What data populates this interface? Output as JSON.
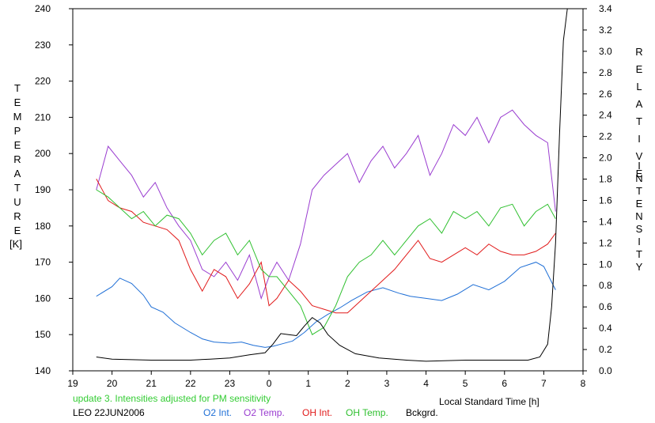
{
  "chart_data": {
    "type": "line",
    "title": "",
    "xlabel": "Local Standard Time [h]",
    "ylabel_left": "TEMPERATURE [K]",
    "ylabel_right": "RELATIVE INTENSITY",
    "left_label_letters": [
      "T",
      "E",
      "M",
      "P",
      "E",
      "R",
      "A",
      "T",
      "U",
      "R",
      "E"
    ],
    "left_label_unit": "[K]",
    "right_label_word1": [
      "R",
      "E",
      "L",
      "A",
      "T",
      "I",
      "V",
      "E"
    ],
    "right_label_word2": [
      "I",
      "N",
      "T",
      "E",
      "N",
      "S",
      "I",
      "T",
      "Y"
    ],
    "xlim": [
      19,
      32
    ],
    "ylim_left": [
      140,
      240
    ],
    "ylim_right": [
      0.0,
      3.4
    ],
    "x_tick_labels": [
      "19",
      "20",
      "21",
      "22",
      "23",
      "0",
      "1",
      "2",
      "3",
      "4",
      "5",
      "6",
      "7",
      "8"
    ],
    "y_left_tick_labels": [
      "140",
      "150",
      "160",
      "170",
      "180",
      "190",
      "200",
      "210",
      "220",
      "230",
      "240"
    ],
    "y_right_tick_labels": [
      "0.0",
      "0.2",
      "0.4",
      "0.6",
      "0.8",
      "1.0",
      "1.2",
      "1.4",
      "1.6",
      "1.8",
      "2.0",
      "2.2",
      "2.4",
      "2.6",
      "2.8",
      "3.0",
      "3.2",
      "3.4"
    ],
    "annotation": "update 3. Intensities adjusted for PM sensitivity",
    "station_date": "LEO 22JUN2006",
    "series": [
      {
        "name": "O2 Int.",
        "color": "#1f6fd6",
        "axis": "right",
        "x": [
          19.6,
          20.0,
          20.2,
          20.5,
          20.8,
          21.0,
          21.3,
          21.6,
          22.0,
          22.3,
          22.6,
          23.0,
          23.3,
          23.6,
          23.9,
          24.1,
          24.3,
          24.6,
          24.9,
          25.2,
          25.5,
          25.8,
          26.1,
          26.5,
          26.9,
          27.3,
          27.6,
          28.0,
          28.4,
          28.8,
          29.2,
          29.6,
          30.0,
          30.4,
          30.8,
          31.0,
          31.3
        ],
        "y": [
          0.7,
          0.79,
          0.87,
          0.82,
          0.71,
          0.6,
          0.55,
          0.45,
          0.36,
          0.3,
          0.27,
          0.26,
          0.27,
          0.24,
          0.22,
          0.23,
          0.25,
          0.28,
          0.36,
          0.46,
          0.53,
          0.59,
          0.66,
          0.74,
          0.78,
          0.73,
          0.7,
          0.68,
          0.66,
          0.72,
          0.81,
          0.76,
          0.84,
          0.97,
          1.02,
          0.98,
          0.76
        ]
      },
      {
        "name": "O2 Temp.",
        "color": "#9a3dd0",
        "axis": "left",
        "x": [
          19.6,
          19.9,
          20.2,
          20.5,
          20.8,
          21.1,
          21.4,
          21.7,
          22.0,
          22.3,
          22.6,
          22.9,
          23.2,
          23.5,
          23.8,
          24.0,
          24.2,
          24.5,
          24.8,
          25.1,
          25.4,
          25.7,
          26.0,
          26.3,
          26.6,
          26.9,
          27.2,
          27.5,
          27.8,
          28.1,
          28.4,
          28.7,
          29.0,
          29.3,
          29.6,
          29.9,
          30.2,
          30.5,
          30.8,
          31.1,
          31.3
        ],
        "y": [
          190,
          202,
          198,
          194,
          188,
          192,
          185,
          180,
          176,
          168,
          166,
          170,
          165,
          172,
          160,
          166,
          170,
          165,
          175,
          190,
          194,
          197,
          200,
          192,
          198,
          202,
          196,
          200,
          205,
          194,
          200,
          208,
          205,
          210,
          203,
          210,
          212,
          208,
          205,
          203,
          184
        ]
      },
      {
        "name": "OH Int.",
        "color": "#e11a1a",
        "axis": "left",
        "x": [
          19.6,
          19.9,
          20.2,
          20.5,
          20.8,
          21.1,
          21.4,
          21.7,
          22.0,
          22.3,
          22.6,
          22.9,
          23.2,
          23.5,
          23.8,
          24.0,
          24.2,
          24.5,
          24.8,
          25.1,
          25.4,
          25.7,
          26.0,
          26.3,
          26.6,
          26.9,
          27.2,
          27.5,
          27.8,
          28.1,
          28.4,
          28.7,
          29.0,
          29.3,
          29.6,
          29.9,
          30.2,
          30.5,
          30.8,
          31.1,
          31.3
        ],
        "y": [
          193,
          187,
          185,
          184,
          181,
          180,
          179,
          176,
          168,
          162,
          168,
          166,
          160,
          164,
          170,
          158,
          160,
          165,
          162,
          158,
          157,
          156,
          156,
          159,
          162,
          165,
          168,
          172,
          176,
          171,
          170,
          172,
          174,
          172,
          175,
          173,
          172,
          172,
          173,
          175,
          178
        ]
      },
      {
        "name": "OH Temp.",
        "color": "#30c030",
        "axis": "left",
        "x": [
          19.6,
          19.9,
          20.2,
          20.5,
          20.8,
          21.1,
          21.4,
          21.7,
          22.0,
          22.3,
          22.6,
          22.9,
          23.2,
          23.5,
          23.8,
          24.0,
          24.2,
          24.5,
          24.8,
          25.1,
          25.4,
          25.7,
          26.0,
          26.3,
          26.6,
          26.9,
          27.2,
          27.5,
          27.8,
          28.1,
          28.4,
          28.7,
          29.0,
          29.3,
          29.6,
          29.9,
          30.2,
          30.5,
          30.8,
          31.1,
          31.3
        ],
        "y": [
          190,
          188,
          185,
          182,
          184,
          180,
          183,
          182,
          178,
          172,
          176,
          178,
          172,
          176,
          168,
          166,
          166,
          162,
          158,
          150,
          152,
          158,
          166,
          170,
          172,
          176,
          172,
          176,
          180,
          182,
          178,
          184,
          182,
          184,
          180,
          185,
          186,
          180,
          184,
          186,
          182
        ]
      },
      {
        "name": "Bckgrd.",
        "color": "#000000",
        "axis": "right",
        "x": [
          19.6,
          20.0,
          21.0,
          22.0,
          22.5,
          23.0,
          23.5,
          23.9,
          24.1,
          24.3,
          24.5,
          24.7,
          24.9,
          25.1,
          25.3,
          25.5,
          25.8,
          26.2,
          26.8,
          27.5,
          28.0,
          29.0,
          30.0,
          30.6,
          30.9,
          31.1,
          31.2,
          31.3,
          31.4,
          31.5,
          31.6
        ],
        "y": [
          0.13,
          0.11,
          0.1,
          0.1,
          0.11,
          0.12,
          0.15,
          0.17,
          0.25,
          0.35,
          0.34,
          0.33,
          0.42,
          0.5,
          0.45,
          0.34,
          0.24,
          0.16,
          0.12,
          0.1,
          0.09,
          0.1,
          0.1,
          0.1,
          0.13,
          0.25,
          0.6,
          1.2,
          2.2,
          3.1,
          3.4
        ]
      }
    ]
  }
}
